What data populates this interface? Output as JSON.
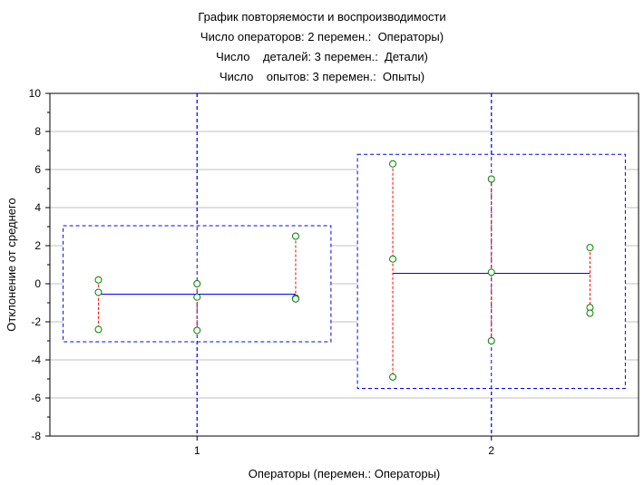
{
  "chart_data": {
    "type": "scatter",
    "title_lines": [
      "График повторяемости и воспроизводимости",
      "Число операторов: 2 перемен.:  Операторы)",
      "Число    деталей: 3 перемен.:  Детали)",
      "Число    опытов: 3 перемен.:  Опыты)"
    ],
    "xlabel": "Операторы (перемен.: Операторы)",
    "ylabel": "Отклонение от среднего",
    "ylim": [
      -8,
      10
    ],
    "yticks": [
      -8,
      -6,
      -4,
      -2,
      0,
      2,
      4,
      6,
      8,
      10
    ],
    "categories": [
      "1",
      "2"
    ],
    "grid": true,
    "operators": [
      {
        "label": "1",
        "mean": -0.55,
        "box": [
          -3.05,
          3.05
        ],
        "parts": [
          {
            "points": [
              0.2,
              -0.45,
              -2.4
            ]
          },
          {
            "points": [
              0.0,
              -0.7,
              -2.45
            ]
          },
          {
            "points": [
              2.5,
              -0.75,
              -0.8
            ]
          }
        ]
      },
      {
        "label": "2",
        "mean": 0.55,
        "box": [
          -5.5,
          6.8
        ],
        "parts": [
          {
            "points": [
              6.3,
              1.3,
              -4.9
            ]
          },
          {
            "points": [
              5.5,
              0.6,
              -3.0
            ]
          },
          {
            "points": [
              1.9,
              -1.25,
              -1.55
            ]
          }
        ]
      }
    ],
    "colors": {
      "points": "#008000",
      "part_range": "#ff0000",
      "operator_mean": "#0000ff",
      "operator_box": "#0000ff",
      "grid": "#c0c0c0"
    }
  }
}
